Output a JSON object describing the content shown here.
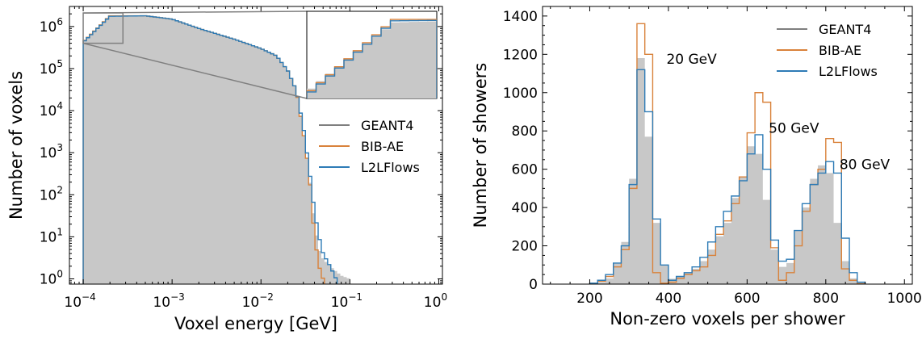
{
  "colors": {
    "geant4": "#c8c8c8",
    "geant4_line": "#7f7f7f",
    "bibae": "#d9823b",
    "l2lflows": "#2d7bb6"
  },
  "chart_data": [
    {
      "type": "histogram",
      "xlabel": "Voxel energy [GeV]",
      "ylabel": "Number of voxels",
      "xscale": "log",
      "yscale": "log",
      "xlim": [
        7e-05,
        1.1
      ],
      "ylim": [
        0.75,
        3000000
      ],
      "x_ticks": [
        {
          "value": 0.0001,
          "base": "10",
          "exp": "−4"
        },
        {
          "value": 0.001,
          "base": "10",
          "exp": "−3"
        },
        {
          "value": 0.01,
          "base": "10",
          "exp": "−2"
        },
        {
          "value": 0.1,
          "base": "10",
          "exp": "−1"
        },
        {
          "value": 1,
          "base": "10",
          "exp": "0"
        }
      ],
      "y_ticks": [
        {
          "value": 1,
          "base": "10",
          "exp": "0"
        },
        {
          "value": 10,
          "base": "10",
          "exp": "1"
        },
        {
          "value": 100,
          "base": "10",
          "exp": "2"
        },
        {
          "value": 1000,
          "base": "10",
          "exp": "3"
        },
        {
          "value": 10000,
          "base": "10",
          "exp": "4"
        },
        {
          "value": 100000,
          "base": "10",
          "exp": "5"
        },
        {
          "value": 1000000,
          "base": "10",
          "exp": "6"
        }
      ],
      "legend": {
        "placement": "center-right",
        "entries": [
          "GEANT4",
          "BIB-AE",
          "L2LFlows"
        ]
      },
      "inset": {
        "type": "zoom",
        "x_range": [
          0.0001,
          0.00028
        ],
        "y_range": [
          400000,
          2100000
        ]
      },
      "series": [
        {
          "name": "GEANT4",
          "style": "filled",
          "x": [
            0.0001,
            0.0002,
            0.0005,
            0.001,
            0.002,
            0.005,
            0.01,
            0.015,
            0.02,
            0.025,
            0.03,
            0.035,
            0.04,
            0.045,
            0.05,
            0.06,
            0.07,
            0.08,
            0.1
          ],
          "y": [
            450000,
            1700000,
            1800000,
            1500000,
            900000,
            500000,
            300000,
            200000,
            90000,
            30000,
            3000,
            300,
            20,
            5,
            3,
            2,
            1.5,
            1.2,
            1
          ]
        },
        {
          "name": "BIB-AE",
          "style": "step",
          "x": [
            0.0001,
            0.0002,
            0.0005,
            0.001,
            0.002,
            0.005,
            0.01,
            0.015,
            0.02,
            0.025,
            0.03,
            0.035,
            0.04,
            0.045,
            0.05
          ],
          "y": [
            430000,
            1800000,
            1800000,
            1500000,
            900000,
            500000,
            300000,
            200000,
            90000,
            30000,
            3000,
            300,
            10,
            2,
            1
          ]
        },
        {
          "name": "L2LFlows",
          "style": "step",
          "x": [
            0.0001,
            0.0002,
            0.0005,
            0.001,
            0.002,
            0.005,
            0.01,
            0.015,
            0.02,
            0.025,
            0.03,
            0.035,
            0.04,
            0.045,
            0.05,
            0.06,
            0.07
          ],
          "y": [
            420000,
            1750000,
            1800000,
            1500000,
            900000,
            500000,
            300000,
            200000,
            90000,
            30000,
            4000,
            400,
            40,
            10,
            4,
            2,
            1
          ]
        }
      ]
    },
    {
      "type": "histogram",
      "xlabel": "Non-zero voxels per shower",
      "ylabel": "Number of showers",
      "xlim": [
        80,
        1020
      ],
      "ylim": [
        0,
        1450
      ],
      "x_ticks": [
        200,
        400,
        600,
        800,
        1000
      ],
      "y_ticks": [
        0,
        200,
        400,
        600,
        800,
        1000,
        1200,
        1400
      ],
      "legend": {
        "placement": "top-right",
        "entries": [
          "GEANT4",
          "BIB-AE",
          "L2LFlows"
        ]
      },
      "annotations": [
        {
          "text": "20 GeV",
          "x": 395,
          "y": 1150
        },
        {
          "text": "50 GeV",
          "x": 655,
          "y": 790
        },
        {
          "text": "80 GeV",
          "x": 835,
          "y": 600
        }
      ],
      "bin_edges": [
        200,
        220,
        240,
        260,
        280,
        300,
        320,
        340,
        360,
        380,
        400,
        420,
        440,
        460,
        480,
        500,
        520,
        540,
        560,
        580,
        600,
        620,
        640,
        660,
        680,
        700,
        720,
        740,
        760,
        780,
        800,
        820,
        840,
        860,
        880,
        900
      ],
      "series": [
        {
          "name": "GEANT4",
          "style": "filled",
          "values": [
            3,
            10,
            30,
            110,
            220,
            550,
            1180,
            770,
            320,
            100,
            28,
            40,
            60,
            80,
            120,
            180,
            250,
            320,
            450,
            560,
            720,
            680,
            440,
            180,
            90,
            110,
            280,
            400,
            550,
            620,
            580,
            320,
            120,
            30,
            8
          ]
        },
        {
          "name": "BIB-AE",
          "style": "step",
          "values": [
            4,
            15,
            40,
            90,
            180,
            500,
            1360,
            1200,
            60,
            5,
            10,
            30,
            50,
            70,
            90,
            150,
            260,
            330,
            420,
            560,
            790,
            1000,
            950,
            190,
            20,
            60,
            200,
            380,
            520,
            600,
            760,
            740,
            80,
            20,
            2
          ]
        },
        {
          "name": "L2LFlows",
          "style": "step",
          "values": [
            5,
            20,
            50,
            110,
            200,
            520,
            1120,
            900,
            340,
            100,
            20,
            40,
            60,
            90,
            140,
            220,
            300,
            380,
            460,
            540,
            680,
            780,
            600,
            230,
            120,
            130,
            280,
            420,
            520,
            580,
            640,
            580,
            240,
            60,
            10
          ]
        }
      ]
    }
  ]
}
